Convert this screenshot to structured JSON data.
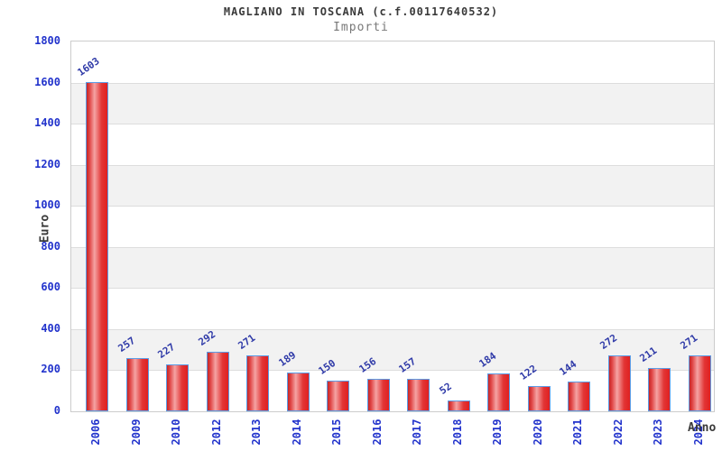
{
  "header": {
    "title": "MAGLIANO IN TOSCANA (c.f.00117640532)",
    "subtitle": "Importi"
  },
  "chart_data": {
    "type": "bar",
    "title": "MAGLIANO IN TOSCANA (c.f.00117640532)",
    "subtitle": "Importi",
    "xlabel": "Anno",
    "ylabel": "Euro",
    "categories": [
      "2006",
      "2009",
      "2010",
      "2012",
      "2013",
      "2014",
      "2015",
      "2016",
      "2017",
      "2018",
      "2019",
      "2020",
      "2021",
      "2022",
      "2023",
      "2024"
    ],
    "values": [
      1603,
      257,
      227,
      292,
      271,
      189,
      150,
      156,
      157,
      52,
      184,
      122,
      144,
      272,
      211,
      271
    ],
    "ylim": [
      0,
      1800
    ],
    "yticks": [
      0,
      200,
      400,
      600,
      800,
      1000,
      1200,
      1400,
      1600,
      1800
    ],
    "grid": true,
    "legend": false,
    "colors": {
      "tick_label_blue": "#2233cc",
      "value_label_blue": "#2f3aa8",
      "bar_border": "#5b9ce6",
      "bar_gradient": [
        "#c62525",
        "#f5a3a3",
        "#e02020"
      ],
      "band_gray": "#f2f2f2",
      "band_white": "#ffffff",
      "grid_line": "#dddddd",
      "plot_border": "#cccccc",
      "title_color": "#3a3a3a",
      "subtitle_color": "#787878"
    }
  }
}
